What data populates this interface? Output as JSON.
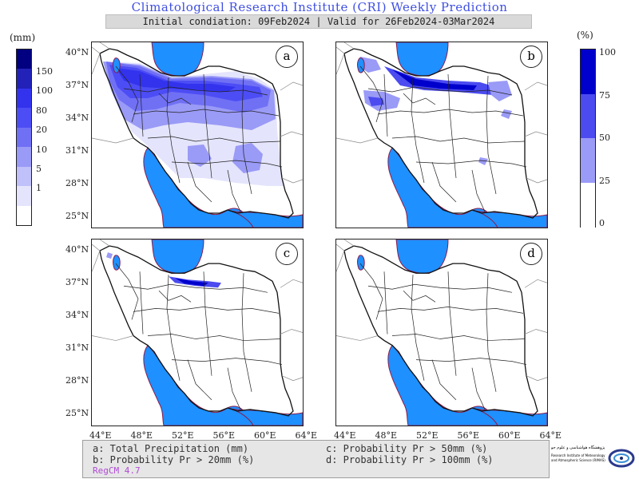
{
  "header": {
    "title": "Climatological Research Institute (CRI) Weekly Prediction",
    "subtitle": "Initial condiation: 09Feb2024 | Valid for 26Feb2024-03Mar2024"
  },
  "left_colorbar": {
    "unit": "(mm)",
    "labels": [
      "150",
      "100",
      "80",
      "20",
      "10",
      "5",
      "1"
    ],
    "colors": [
      "#000080",
      "#2222b8",
      "#3333ee",
      "#4d4df5",
      "#7070f5",
      "#9a9af7",
      "#c0c0fa",
      "#e4e4fc",
      "#ffffff"
    ]
  },
  "right_colorbar": {
    "unit": "(%)",
    "labels": [
      "100",
      "75",
      "50",
      "25",
      "0"
    ],
    "colors": [
      "#0000cc",
      "#4b4bf0",
      "#9a9af7",
      "#ffffff"
    ]
  },
  "panels": [
    {
      "tag": "a"
    },
    {
      "tag": "b"
    },
    {
      "tag": "c"
    },
    {
      "tag": "d"
    }
  ],
  "lat_ticks": [
    "40°N",
    "37°N",
    "34°N",
    "31°N",
    "28°N",
    "25°N"
  ],
  "lon_ticks": [
    "44°E",
    "48°E",
    "52°E",
    "56°E",
    "60°E",
    "64°E"
  ],
  "legend": {
    "a": "a: Total Precipitation (mm)",
    "b": "b: Probability Pr > 20mm (%)",
    "c": "c: Probability Pr > 50mm (%)",
    "d": "d: Probability Pr > 100mm (%)",
    "model": "RegCM 4.7"
  },
  "logo": {
    "line1": "پژوهشگاه هواشناسی و علوم جو",
    "line2": "Research Institute of Meteorology",
    "line3": "and Atmospheric Science (RIMAS)"
  },
  "map_colors": {
    "sea": "#1e90ff",
    "land": "#ffffff",
    "border": "#111111",
    "coast": "#8b1a4a"
  }
}
